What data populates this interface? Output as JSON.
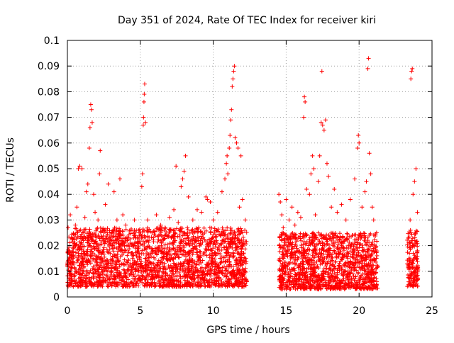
{
  "chart_data": {
    "type": "scatter",
    "title": "Day 351 of 2024, Rate Of TEC Index for receiver kiri",
    "xlabel": "GPS time / hours",
    "ylabel": "ROTI / TECUs",
    "xlim": [
      0,
      25
    ],
    "ylim": [
      0,
      0.1
    ],
    "xticks": [
      "0",
      "5",
      "10",
      "15",
      "20",
      "25"
    ],
    "yticks": [
      "0",
      "0.01",
      "0.02",
      "0.03",
      "0.04",
      "0.05",
      "0.06",
      "0.07",
      "0.08",
      "0.09",
      "0.1"
    ],
    "grid": true,
    "marker": "plus",
    "color": "#ff0000",
    "series": [
      {
        "values": [
          [
            0.0,
            0.012
          ],
          [
            0.05,
            0.027
          ],
          [
            0.1,
            0.007
          ],
          [
            0.15,
            0.018
          ],
          [
            0.2,
            0.032
          ],
          [
            0.3,
            0.011
          ],
          [
            0.4,
            0.015
          ],
          [
            0.5,
            0.009
          ],
          [
            0.55,
            0.028
          ],
          [
            0.65,
            0.035
          ],
          [
            0.75,
            0.05
          ],
          [
            0.85,
            0.051
          ],
          [
            1.0,
            0.05
          ],
          [
            1.1,
            0.022
          ],
          [
            1.2,
            0.031
          ],
          [
            1.3,
            0.041
          ],
          [
            1.4,
            0.044
          ],
          [
            1.5,
            0.058
          ],
          [
            1.55,
            0.066
          ],
          [
            1.6,
            0.075
          ],
          [
            1.65,
            0.073
          ],
          [
            1.7,
            0.068
          ],
          [
            1.8,
            0.04
          ],
          [
            1.9,
            0.033
          ],
          [
            2.0,
            0.021
          ],
          [
            2.1,
            0.03
          ],
          [
            2.2,
            0.048
          ],
          [
            2.25,
            0.057
          ],
          [
            2.4,
            0.026
          ],
          [
            2.6,
            0.036
          ],
          [
            2.8,
            0.044
          ],
          [
            3.0,
            0.025
          ],
          [
            3.2,
            0.041
          ],
          [
            3.4,
            0.03
          ],
          [
            3.6,
            0.046
          ],
          [
            3.8,
            0.032
          ],
          [
            4.0,
            0.028
          ],
          [
            4.3,
            0.021
          ],
          [
            4.6,
            0.03
          ],
          [
            4.9,
            0.026
          ],
          [
            5.1,
            0.043
          ],
          [
            5.15,
            0.048
          ],
          [
            5.2,
            0.067
          ],
          [
            5.22,
            0.07
          ],
          [
            5.25,
            0.076
          ],
          [
            5.27,
            0.079
          ],
          [
            5.3,
            0.083
          ],
          [
            5.35,
            0.068
          ],
          [
            5.5,
            0.03
          ],
          [
            5.8,
            0.025
          ],
          [
            6.1,
            0.032
          ],
          [
            6.4,
            0.028
          ],
          [
            6.7,
            0.027
          ],
          [
            7.0,
            0.031
          ],
          [
            7.3,
            0.034
          ],
          [
            7.45,
            0.051
          ],
          [
            7.6,
            0.029
          ],
          [
            7.8,
            0.043
          ],
          [
            7.9,
            0.046
          ],
          [
            8.0,
            0.049
          ],
          [
            8.1,
            0.055
          ],
          [
            8.3,
            0.039
          ],
          [
            8.6,
            0.03
          ],
          [
            8.9,
            0.034
          ],
          [
            9.2,
            0.033
          ],
          [
            9.5,
            0.039
          ],
          [
            9.6,
            0.038
          ],
          [
            9.8,
            0.037
          ],
          [
            10.0,
            0.03
          ],
          [
            10.3,
            0.033
          ],
          [
            10.6,
            0.041
          ],
          [
            10.8,
            0.046
          ],
          [
            10.9,
            0.052
          ],
          [
            10.95,
            0.055
          ],
          [
            11.0,
            0.048
          ],
          [
            11.1,
            0.058
          ],
          [
            11.15,
            0.063
          ],
          [
            11.2,
            0.069
          ],
          [
            11.25,
            0.073
          ],
          [
            11.3,
            0.082
          ],
          [
            11.35,
            0.085
          ],
          [
            11.4,
            0.088
          ],
          [
            11.45,
            0.09
          ],
          [
            11.5,
            0.062
          ],
          [
            11.6,
            0.06
          ],
          [
            11.7,
            0.058
          ],
          [
            11.8,
            0.035
          ],
          [
            11.9,
            0.055
          ],
          [
            12.0,
            0.038
          ],
          [
            12.2,
            0.03
          ],
          [
            14.5,
            0.04
          ],
          [
            14.6,
            0.037
          ],
          [
            14.7,
            0.032
          ],
          [
            14.8,
            0.027
          ],
          [
            15.0,
            0.038
          ],
          [
            15.2,
            0.03
          ],
          [
            15.4,
            0.035
          ],
          [
            15.6,
            0.028
          ],
          [
            15.8,
            0.033
          ],
          [
            16.0,
            0.031
          ],
          [
            16.2,
            0.07
          ],
          [
            16.25,
            0.078
          ],
          [
            16.3,
            0.076
          ],
          [
            16.4,
            0.042
          ],
          [
            16.6,
            0.04
          ],
          [
            16.7,
            0.048
          ],
          [
            16.8,
            0.055
          ],
          [
            16.9,
            0.05
          ],
          [
            17.0,
            0.032
          ],
          [
            17.2,
            0.045
          ],
          [
            17.3,
            0.055
          ],
          [
            17.4,
            0.068
          ],
          [
            17.45,
            0.088
          ],
          [
            17.5,
            0.067
          ],
          [
            17.6,
            0.065
          ],
          [
            17.7,
            0.069
          ],
          [
            17.8,
            0.052
          ],
          [
            17.9,
            0.047
          ],
          [
            18.1,
            0.035
          ],
          [
            18.3,
            0.042
          ],
          [
            18.5,
            0.033
          ],
          [
            18.8,
            0.036
          ],
          [
            19.1,
            0.03
          ],
          [
            19.4,
            0.038
          ],
          [
            19.7,
            0.046
          ],
          [
            19.9,
            0.058
          ],
          [
            19.95,
            0.063
          ],
          [
            20.0,
            0.06
          ],
          [
            20.2,
            0.035
          ],
          [
            20.4,
            0.041
          ],
          [
            20.5,
            0.045
          ],
          [
            20.6,
            0.089
          ],
          [
            20.65,
            0.093
          ],
          [
            20.7,
            0.056
          ],
          [
            20.8,
            0.048
          ],
          [
            20.9,
            0.035
          ],
          [
            21.0,
            0.03
          ],
          [
            21.2,
            0.025
          ],
          [
            23.5,
            0.03
          ],
          [
            23.55,
            0.085
          ],
          [
            23.6,
            0.088
          ],
          [
            23.65,
            0.089
          ],
          [
            23.7,
            0.04
          ],
          [
            23.8,
            0.045
          ],
          [
            23.9,
            0.05
          ],
          [
            24.0,
            0.033
          ],
          [
            24.0,
            0.018
          ],
          [
            23.6,
            0.022
          ]
        ]
      }
    ],
    "dense_band": [
      {
        "x_range": [
          0.0,
          12.3
        ],
        "y_range": [
          0.004,
          0.027
        ],
        "count": 2200
      },
      {
        "x_range": [
          14.5,
          21.3
        ],
        "y_range": [
          0.003,
          0.025
        ],
        "count": 1300
      },
      {
        "x_range": [
          23.3,
          24.05
        ],
        "y_range": [
          0.004,
          0.026
        ],
        "count": 160
      }
    ]
  }
}
